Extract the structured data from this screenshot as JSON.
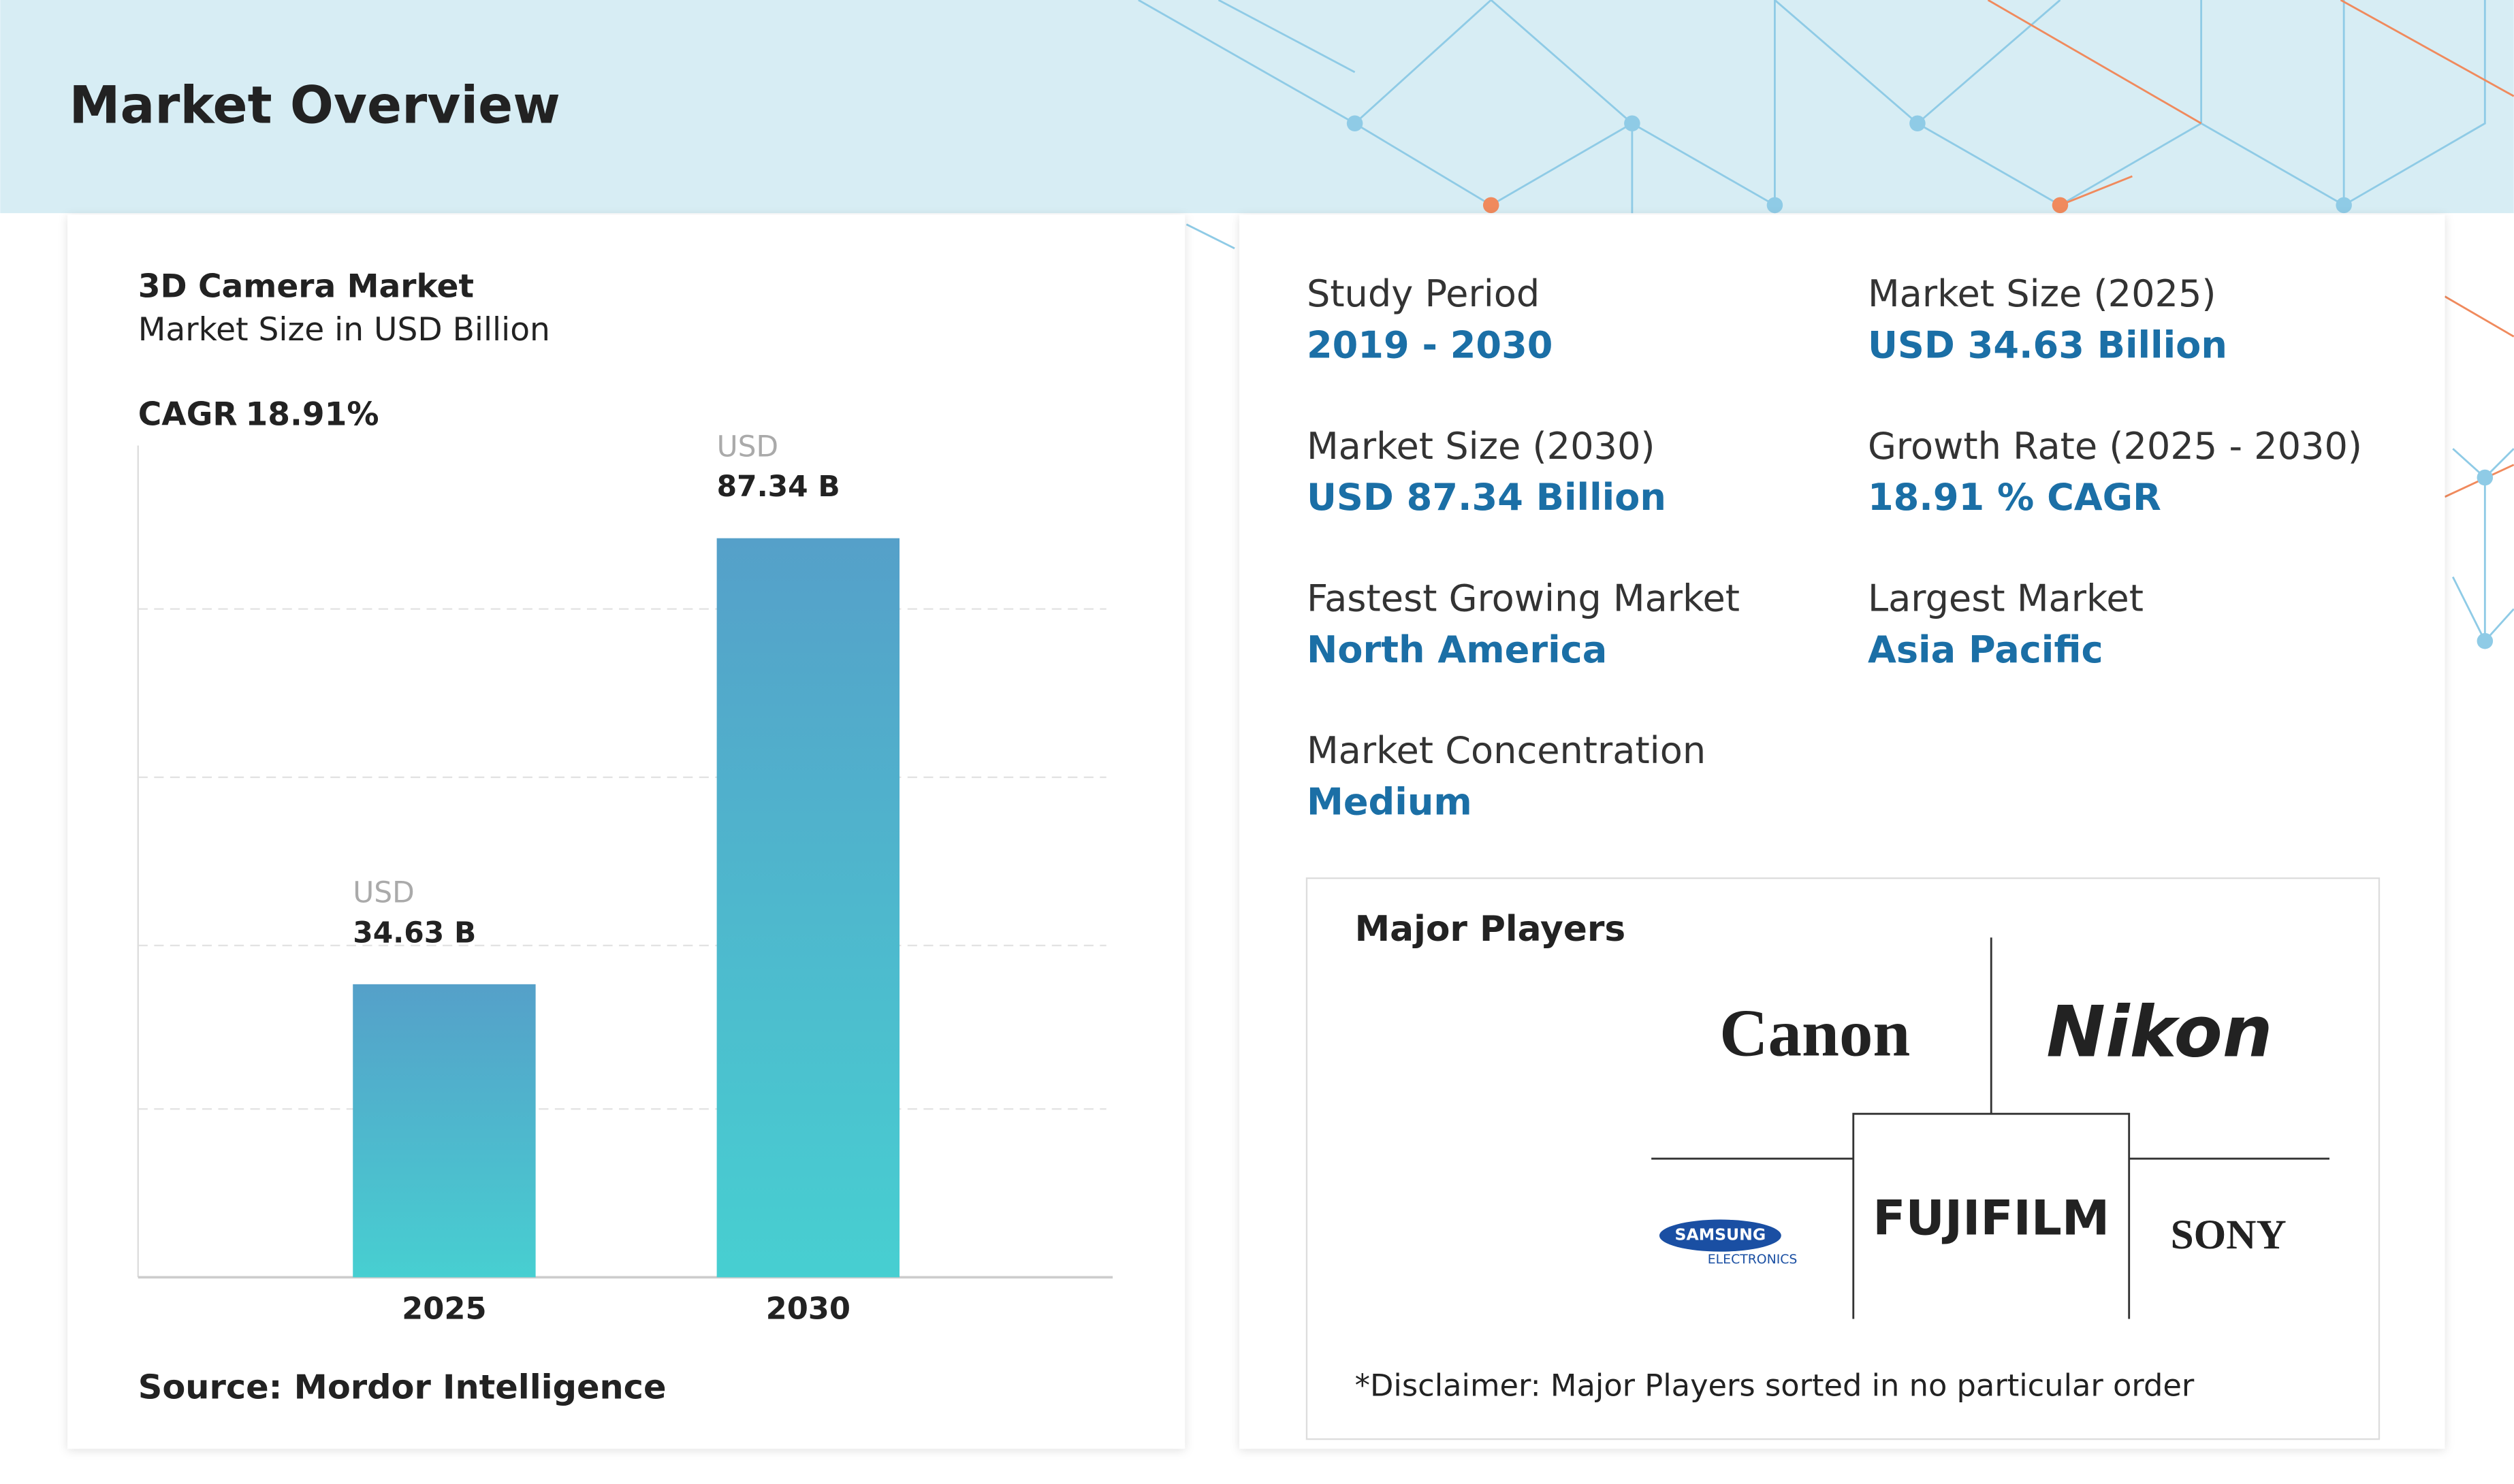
{
  "header": {
    "title": "Market Overview"
  },
  "chart_data": {
    "type": "bar",
    "title": "3D Camera Market",
    "subtitle": "Market Size in USD Billion",
    "cagr_label": "CAGR",
    "cagr_value": "18.91%",
    "categories": [
      "2025",
      "2030"
    ],
    "values": [
      34.63,
      87.34
    ],
    "value_labels": [
      [
        "USD",
        "34.63 B"
      ],
      [
        "USD",
        "87.34 B"
      ]
    ],
    "ylim": [
      0,
      100
    ],
    "colors": [
      "#55a0c9",
      "#47cfd1"
    ],
    "source": "Source: Mordor Intelligence"
  },
  "stats": [
    {
      "label": "Study Period",
      "value": "2019 - 2030"
    },
    {
      "label": "Market Size (2025)",
      "value": "USD 34.63 Billion"
    },
    {
      "label": "Market Size (2030)",
      "value": "USD 87.34 Billion"
    },
    {
      "label": "Growth Rate (2025 - 2030)",
      "value": "18.91 % CAGR"
    },
    {
      "label": "Fastest Growing Market",
      "value": "North America"
    },
    {
      "label": "Largest Market",
      "value": "Asia Pacific"
    },
    {
      "label": "Market Concentration",
      "value": "Medium"
    }
  ],
  "players": {
    "title": "Major Players",
    "logos": [
      "Canon",
      "Nikon",
      "SAMSUNG",
      "ELECTRONICS",
      "FUJIFILM",
      "SONY"
    ],
    "disclaimer": "*Disclaimer: Major Players sorted in no particular order"
  }
}
